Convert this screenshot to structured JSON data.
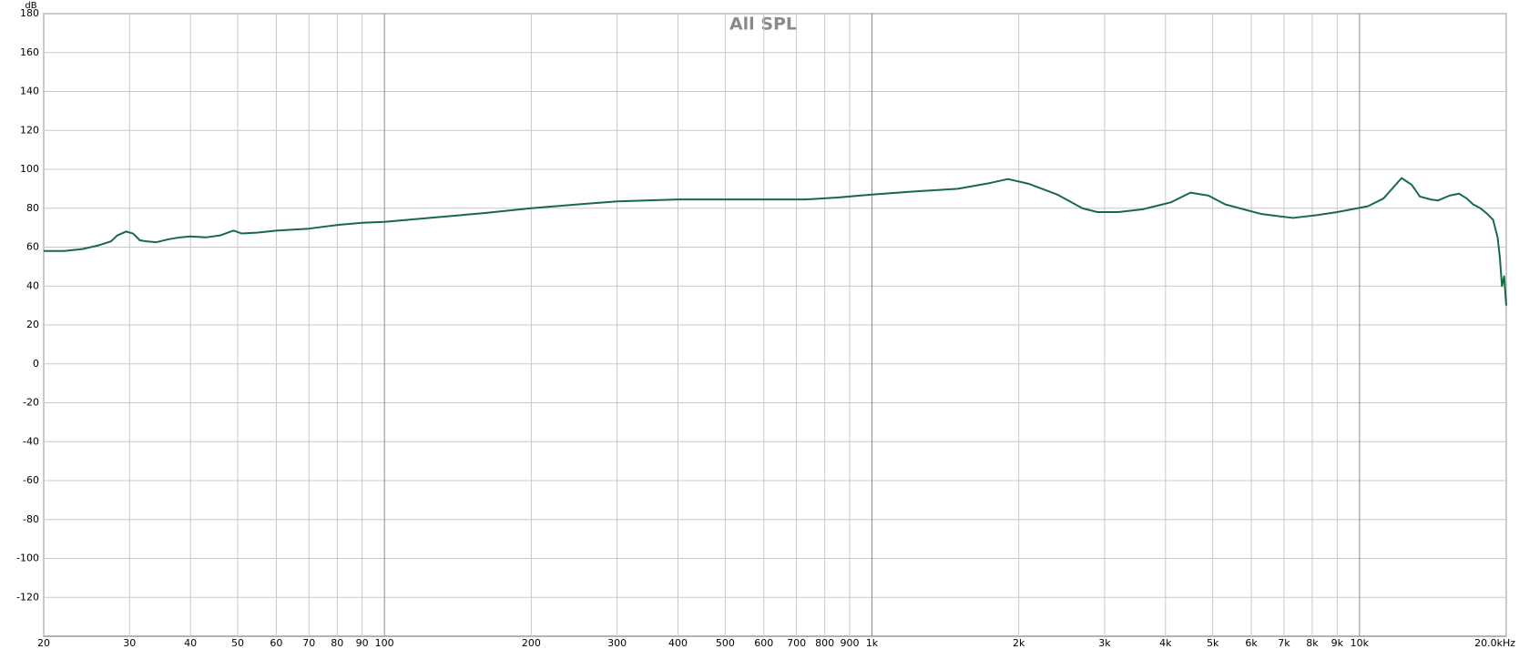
{
  "chart_data": {
    "type": "line",
    "title": "All SPL",
    "y_label": "dB",
    "log_x": true,
    "grid": true,
    "xlim": [
      20,
      20000
    ],
    "ylim": [
      -140,
      180
    ],
    "yticks": [
      -120,
      -100,
      -80,
      -60,
      -40,
      -20,
      0,
      20,
      40,
      60,
      80,
      100,
      120,
      140,
      160,
      180
    ],
    "xticks": [
      20,
      30,
      40,
      50,
      60,
      70,
      80,
      90,
      100,
      200,
      300,
      400,
      500,
      600,
      700,
      800,
      900,
      {
        "value": 1000,
        "label": "1k"
      },
      {
        "value": 2000,
        "label": "2k"
      },
      {
        "value": 3000,
        "label": "3k"
      },
      {
        "value": 4000,
        "label": "4k"
      },
      {
        "value": 5000,
        "label": "5k"
      },
      {
        "value": 6000,
        "label": "6k"
      },
      {
        "value": 7000,
        "label": "7k"
      },
      {
        "value": 8000,
        "label": "8k"
      },
      {
        "value": 9000,
        "label": "9k"
      },
      {
        "value": 10000,
        "label": "10k"
      },
      {
        "value": 20000,
        "label": "20.0kHz"
      }
    ],
    "x": [
      20,
      22,
      24,
      26,
      27.5,
      28.3,
      29.5,
      30.5,
      31.5,
      32.5,
      34,
      36,
      38,
      40,
      43,
      46,
      49,
      51,
      55,
      60,
      65,
      70,
      75,
      81,
      90,
      100,
      130,
      160,
      200,
      250,
      300,
      400,
      500,
      600,
      730,
      850,
      1000,
      1200,
      1500,
      1750,
      1900,
      2100,
      2400,
      2700,
      2900,
      3200,
      3600,
      4100,
      4500,
      4900,
      5300,
      6300,
      7300,
      8200,
      9000,
      10400,
      11200,
      12200,
      12800,
      13300,
      14000,
      14500,
      15300,
      16000,
      16600,
      17100,
      17700,
      18300,
      18800,
      19200,
      19400,
      19600,
      19800,
      20000
    ],
    "series": [
      {
        "name": "All SPL",
        "color": "#176b43",
        "values": [
          58,
          58,
          59,
          61,
          63,
          66,
          68,
          67,
          63.5,
          63,
          62.5,
          64,
          65,
          65.5,
          65,
          66,
          68.5,
          67,
          67.5,
          68.5,
          69,
          69.5,
          70.5,
          71.5,
          72.5,
          73,
          75.5,
          77.5,
          80,
          82,
          83.5,
          84.5,
          84.5,
          84.5,
          84.5,
          85.5,
          87,
          88.5,
          90,
          93,
          95,
          92.5,
          87,
          80,
          78,
          78,
          79.5,
          83,
          88,
          86.5,
          82,
          77,
          75,
          76.5,
          78,
          81,
          85,
          95.5,
          92,
          86,
          84.5,
          84,
          86.5,
          87.5,
          85,
          82,
          80,
          77,
          74,
          65,
          55,
          40,
          45,
          30
        ]
      }
    ]
  }
}
